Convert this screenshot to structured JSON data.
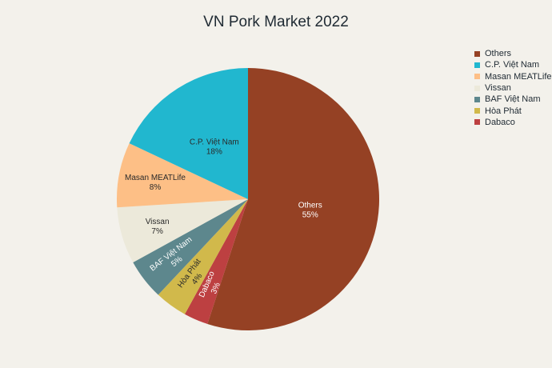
{
  "chart_data": {
    "type": "pie",
    "title": "VN Pork Market 2022",
    "slices": [
      {
        "label": "Others",
        "value": 55,
        "display": "55%",
        "color": "#954124",
        "text_color": "#ffffff"
      },
      {
        "label": "Dabaco",
        "value": 3,
        "display": "3%",
        "color": "#bd4041",
        "text_color": "#ffffff"
      },
      {
        "label": "Hòa Phát",
        "value": 4,
        "display": "4%",
        "color": "#d1b94b",
        "text_color": "#2a2a2a"
      },
      {
        "label": "BAF Việt Nam",
        "value": 5,
        "display": "5%",
        "color": "#5d878d",
        "text_color": "#ffffff"
      },
      {
        "label": "Vissan",
        "value": 7,
        "display": "7%",
        "color": "#ece9da",
        "text_color": "#2a2a2a"
      },
      {
        "label": "Masan MEATLife",
        "value": 8,
        "display": "8%",
        "color": "#fdbf86",
        "text_color": "#2a2a2a"
      },
      {
        "label": "C.P. Việt Nam",
        "value": 18,
        "display": "18%",
        "color": "#21b7cf",
        "text_color": "#2a2a2a"
      }
    ],
    "legend": {
      "placement": "top-right",
      "order": [
        "Others",
        "C.P. Việt Nam",
        "Masan MEATLife",
        "Vissan",
        "BAF Việt Nam",
        "Hòa Phát",
        "Dabaco"
      ]
    }
  }
}
